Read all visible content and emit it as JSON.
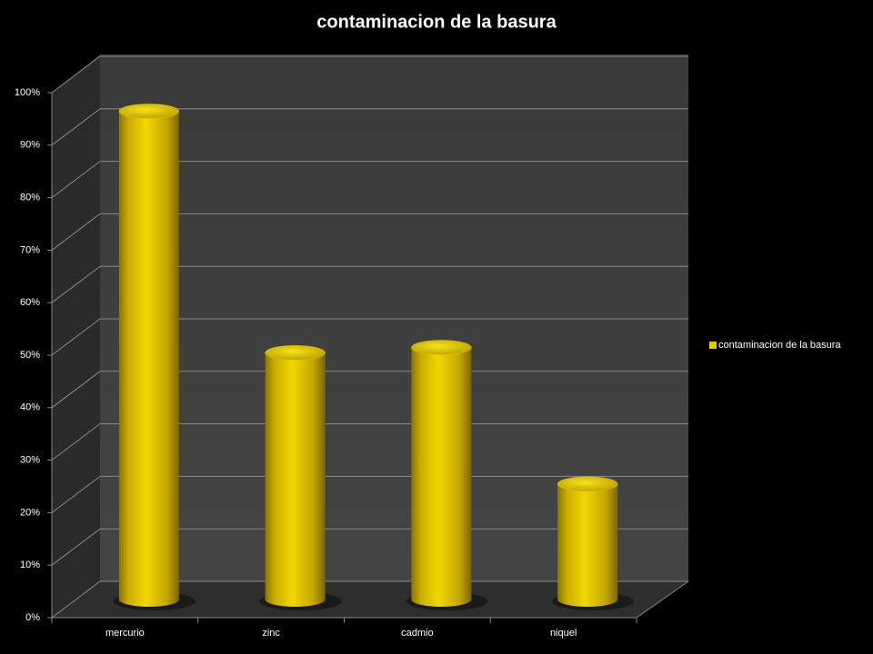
{
  "chart_data": {
    "type": "bar3d",
    "title": "contaminacion de la basura",
    "categories": [
      "mercurio",
      "zinc",
      "cadmio",
      "niquel"
    ],
    "series": [
      {
        "name": "contaminacion de la basura",
        "color": "#e6c800",
        "values": [
          93,
          47,
          48,
          22
        ]
      }
    ],
    "ylim": [
      0,
      100
    ],
    "yticks": [
      {
        "value": 0,
        "label": "0%"
      },
      {
        "value": 10,
        "label": "10%"
      },
      {
        "value": 20,
        "label": "20%"
      },
      {
        "value": 30,
        "label": "30%"
      },
      {
        "value": 40,
        "label": "40%"
      },
      {
        "value": 50,
        "label": "50%"
      },
      {
        "value": 60,
        "label": "60%"
      },
      {
        "value": 70,
        "label": "70%"
      },
      {
        "value": 80,
        "label": "80%"
      },
      {
        "value": 90,
        "label": "90%"
      },
      {
        "value": 100,
        "label": "100%"
      }
    ],
    "grid": true,
    "legend": "right"
  }
}
